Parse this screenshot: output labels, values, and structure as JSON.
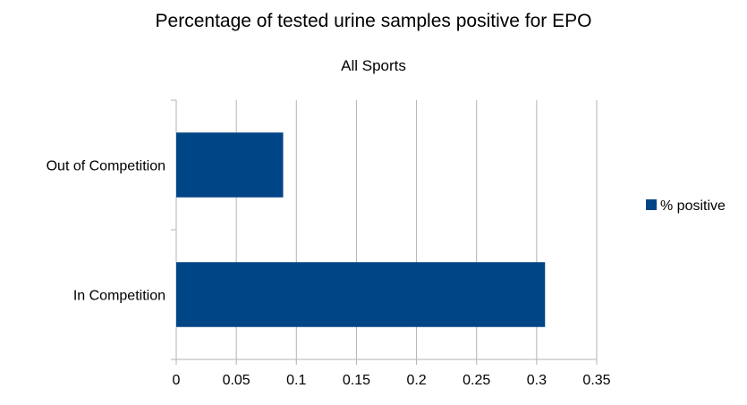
{
  "chart_data": {
    "type": "bar",
    "orientation": "horizontal",
    "title": "Percentage of tested urine samples positive for EPO",
    "subtitle": "All Sports",
    "categories": [
      "Out of Competition",
      "In Competition"
    ],
    "series": [
      {
        "name": "% positive",
        "values": [
          0.089,
          0.307
        ]
      }
    ],
    "xlim": [
      0,
      0.35
    ],
    "x_ticks": [
      "0",
      "0.05",
      "0.1",
      "0.15",
      "0.2",
      "0.25",
      "0.3",
      "0.35"
    ],
    "grid": true,
    "legend_position": "right",
    "colors": {
      "bar": "#004586",
      "grid": "#b3b3b3",
      "axis": "#b3b3b3"
    }
  }
}
